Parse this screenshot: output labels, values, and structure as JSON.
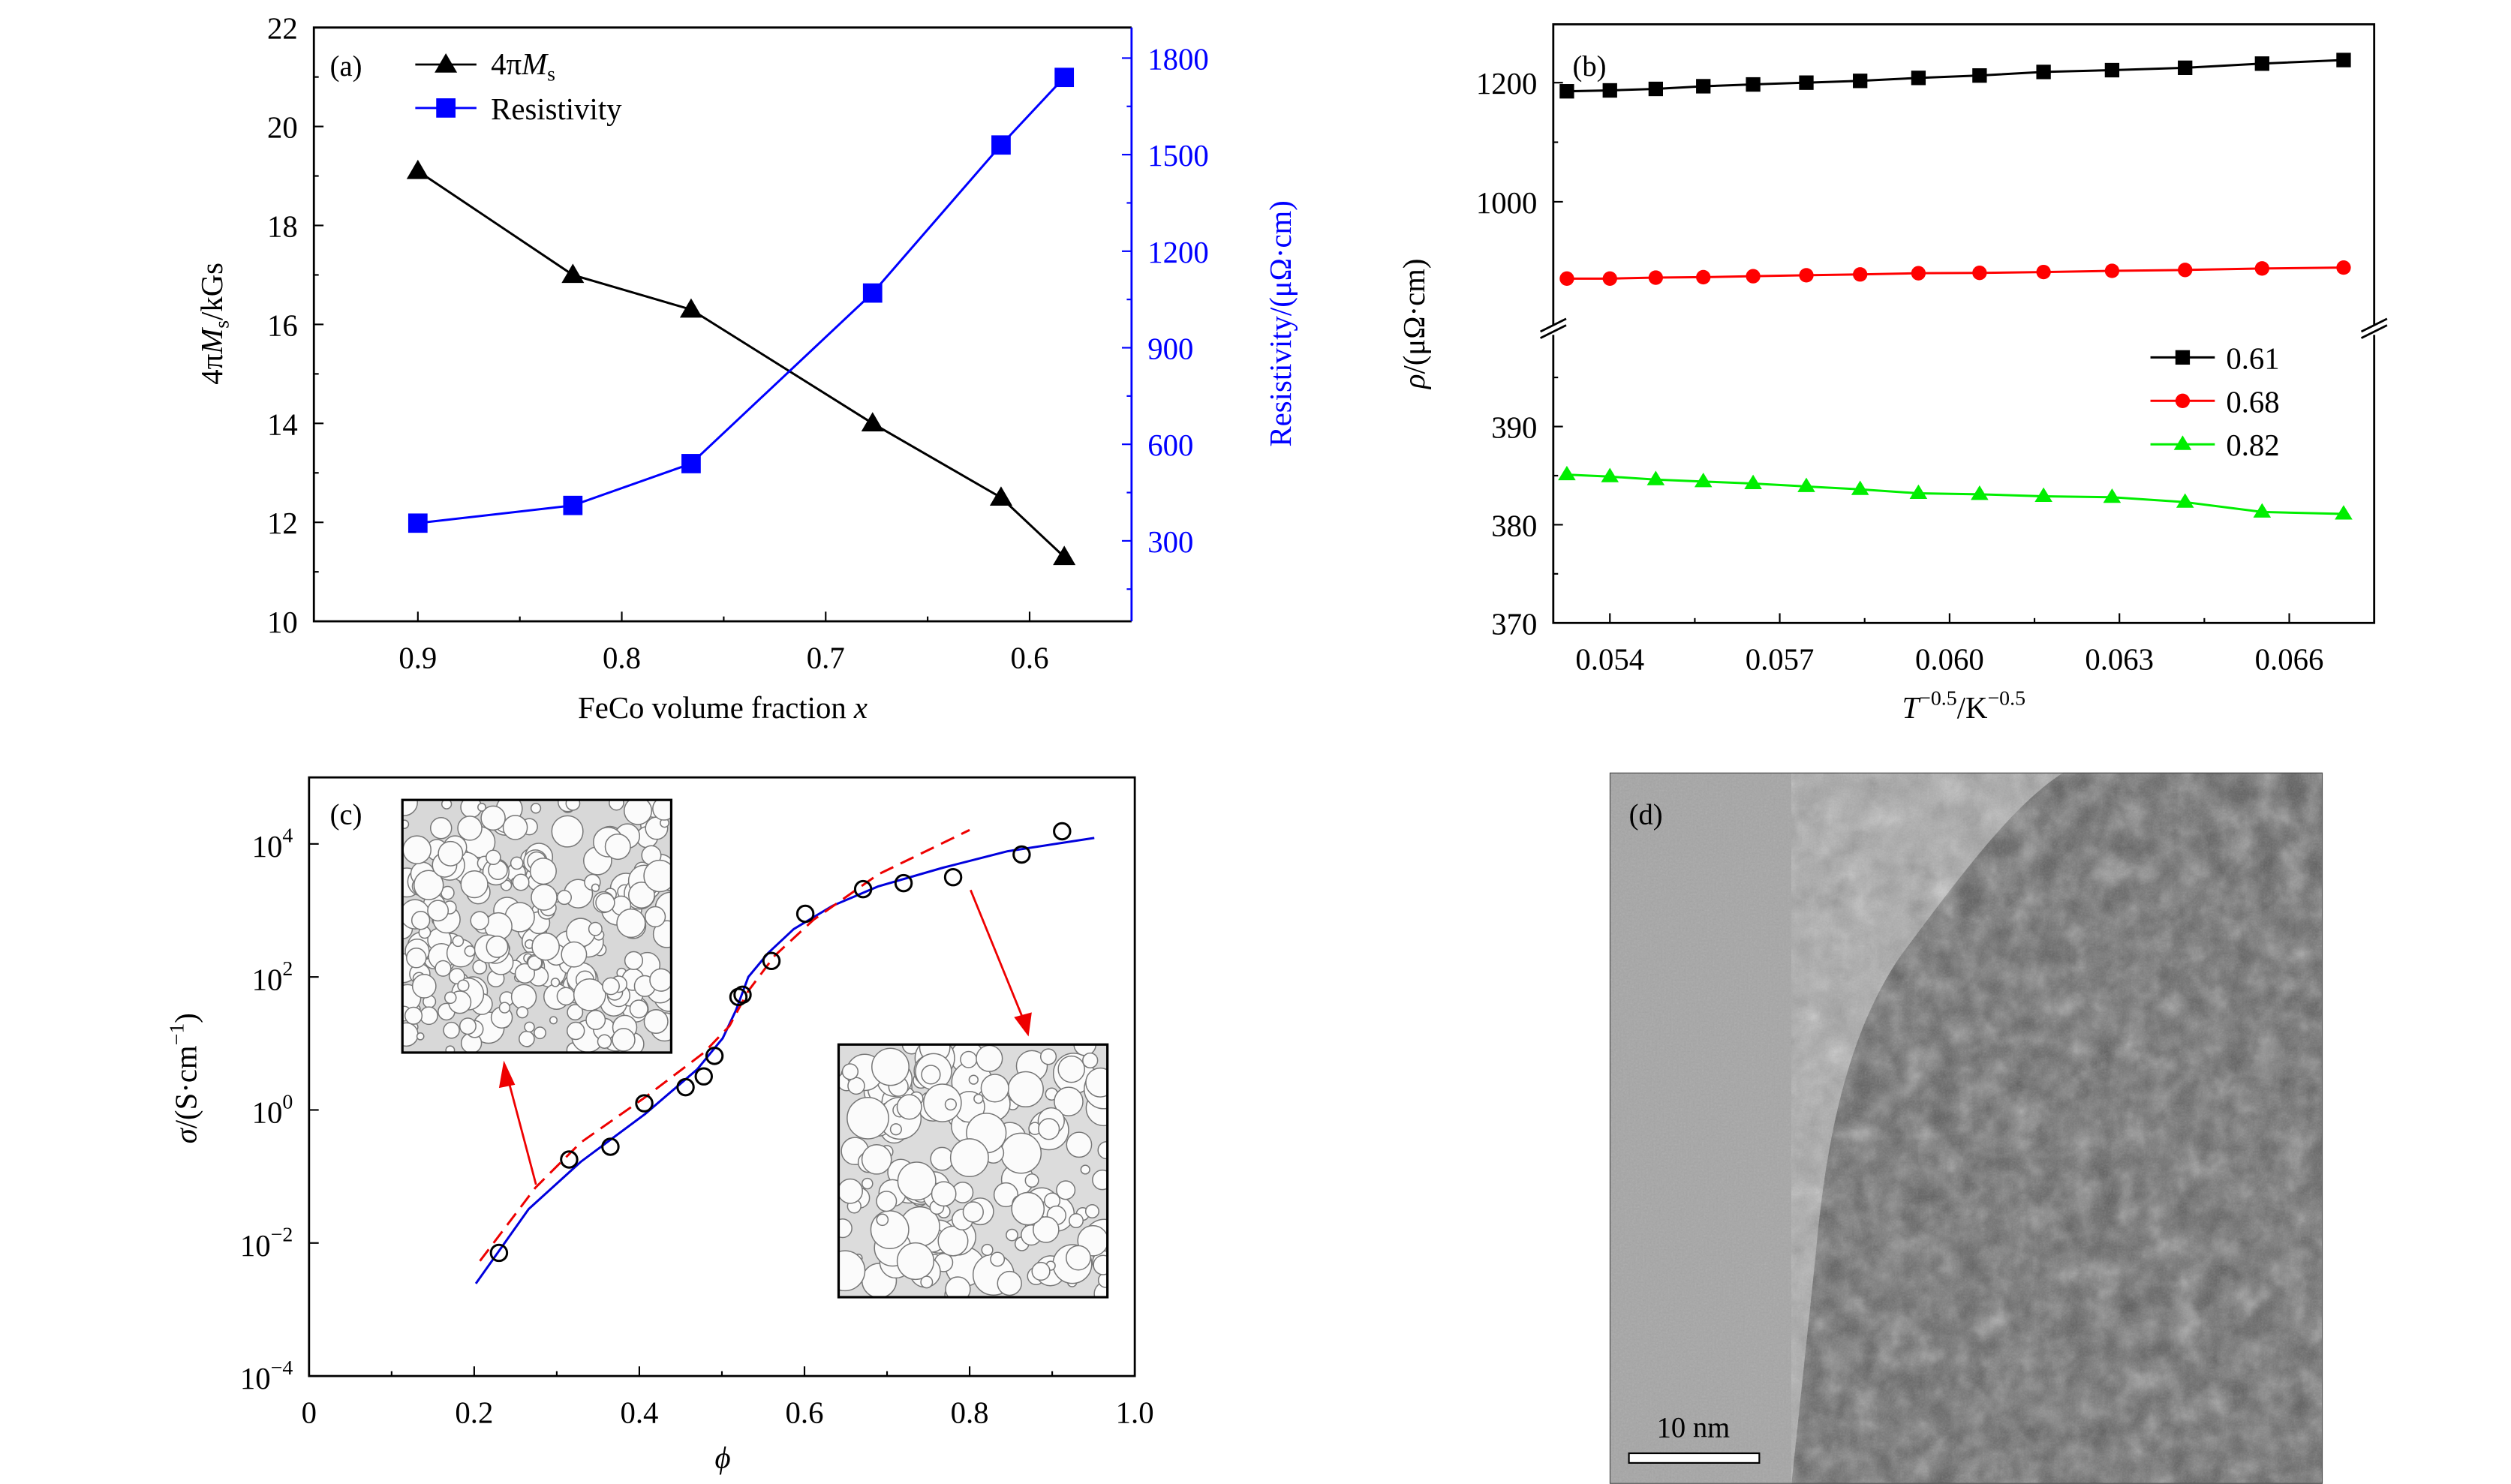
{
  "chart_data": [
    {
      "panel": "(a)",
      "type": "line",
      "xlabel": {
        "main": "FeCo volume fraction ",
        "var": "x"
      },
      "ylabel": {
        "pre": "4π",
        "var": "M",
        "sub": "s",
        "unit": "/kGs"
      },
      "y2label": "Resistivity/(μΩ·cm)",
      "xlim": [
        0.951,
        0.55
      ],
      "ylim": [
        10,
        22
      ],
      "y2lim": [
        50,
        1895
      ],
      "xticks": [
        "0.9",
        "0.8",
        "0.7",
        "0.6"
      ],
      "yticks": [
        "10",
        "12",
        "14",
        "16",
        "18",
        "20",
        "22"
      ],
      "y2ticks": [
        "300",
        "600",
        "900",
        "1200",
        "1500",
        "1800"
      ],
      "grid": false,
      "legend_position": "top-left",
      "series": [
        {
          "name": {
            "pre": "4π",
            "var": "M",
            "sub": "s"
          },
          "axis": "left",
          "color": "#000000",
          "marker": "triangle",
          "x": [
            0.9,
            0.824,
            0.766,
            0.677,
            0.614,
            0.583
          ],
          "y": [
            19.1,
            17.0,
            16.3,
            14.0,
            12.5,
            11.3
          ]
        },
        {
          "name": {
            "pre": "Resistivity"
          },
          "axis": "right",
          "color": "#0000ff",
          "marker": "square",
          "x": [
            0.9,
            0.824,
            0.766,
            0.677,
            0.614,
            0.583
          ],
          "y": [
            355,
            410,
            540,
            1070,
            1530,
            1740
          ]
        }
      ]
    },
    {
      "panel": "(b)",
      "type": "line",
      "xlabel": {
        "var": "T",
        "sup1": "−0.5",
        "mid": "/K",
        "sup2": "−0.5"
      },
      "ylabel": {
        "var": "ρ",
        "unit": "/(μΩ·cm)"
      },
      "xlim": [
        0.053,
        0.0675
      ],
      "ylim_upper": [
        790,
        1298
      ],
      "ylim_lower": [
        370,
        399.5
      ],
      "axis_break": true,
      "xticks": [
        "0.054",
        "0.057",
        "0.060",
        "0.063",
        "0.066"
      ],
      "yticks_upper": [
        "1000",
        "1200"
      ],
      "yticks_lower": [
        "370",
        "380",
        "390"
      ],
      "grid": false,
      "legend_position": "right-middle",
      "x": [
        0.05324,
        0.054,
        0.05481,
        0.05565,
        0.05653,
        0.05747,
        0.05842,
        0.05945,
        0.06053,
        0.06166,
        0.06287,
        0.06416,
        0.06552,
        0.06696
      ],
      "series": [
        {
          "name": "0.61",
          "color": "#000000",
          "marker": "square",
          "segment": "upper",
          "y": [
            1185.5,
            1187,
            1189.5,
            1194,
            1197,
            1200,
            1203,
            1208,
            1212,
            1218,
            1221,
            1225,
            1232,
            1238
          ]
        },
        {
          "name": "0.68",
          "color": "#ff0000",
          "marker": "circle",
          "segment": "upper",
          "y": [
            871,
            871,
            872.6,
            873.4,
            875,
            876.6,
            878,
            880,
            880.6,
            882,
            884,
            885.5,
            888,
            889.5
          ]
        },
        {
          "name": "0.82",
          "color": "#00ee00",
          "marker": "triangle",
          "segment": "lower",
          "y": [
            385.1,
            384.9,
            384.6,
            384.4,
            384.2,
            383.9,
            383.6,
            383.2,
            383.1,
            382.9,
            382.8,
            382.3,
            381.3,
            381.1
          ]
        }
      ]
    },
    {
      "panel": "(c)",
      "type": "scatter",
      "xlabel": "ϕ",
      "ylabel": {
        "var": "σ",
        "unit": "/(S·cm",
        "sup": "−1",
        "close": ")"
      },
      "xlim": [
        0,
        1
      ],
      "ylim_log10": [
        -4,
        5
      ],
      "yscale": "log",
      "xticks": [
        "0",
        "0.2",
        "0.4",
        "0.6",
        "0.8",
        "1.0"
      ],
      "yticks": [
        {
          "base": "10",
          "exp": "−4",
          "v": -4
        },
        {
          "base": "10",
          "exp": "−2",
          "v": -2
        },
        {
          "base": "10",
          "exp": "0",
          "v": 0
        },
        {
          "base": "10",
          "exp": "2",
          "v": 2
        },
        {
          "base": "10",
          "exp": "4",
          "v": 4
        }
      ],
      "grid": false,
      "points": {
        "marker": "open-circle",
        "color": "#000000",
        "x": [
          0.23,
          0.315,
          0.365,
          0.406,
          0.456,
          0.478,
          0.491,
          0.52,
          0.525,
          0.56,
          0.601,
          0.671,
          0.72,
          0.78,
          0.863,
          0.912
        ],
        "y": [
          0.0071,
          0.18,
          0.28,
          1.26,
          2.2,
          3.2,
          6.5,
          50,
          54,
          174,
          890,
          2090,
          2570,
          3160,
          6920,
          15500
        ]
      },
      "curves": [
        {
          "style": "solid",
          "color": "#0000dd",
          "x": [
            0.202,
            0.266,
            0.329,
            0.407,
            0.47,
            0.501,
            0.517,
            0.532,
            0.556,
            0.587,
            0.634,
            0.689,
            0.767,
            0.846,
            0.951
          ],
          "y": [
            0.00245,
            0.0324,
            0.166,
            0.871,
            4.07,
            12.0,
            31.6,
            100,
            229,
            525,
            1175,
            2291,
            4365,
            7762,
            12300
          ]
        },
        {
          "style": "dashed",
          "color": "#ee0000",
          "x": [
            0.207,
            0.274,
            0.329,
            0.407,
            0.478,
            0.509,
            0.532,
            0.564,
            0.611,
            0.689,
            0.8
          ],
          "y": [
            0.00537,
            0.0676,
            0.324,
            1.55,
            7.24,
            18.2,
            61.7,
            209,
            724,
            3467,
            16200
          ]
        }
      ]
    }
  ],
  "panel_d": {
    "label": "(d)",
    "scale_bar": "10 nm"
  }
}
